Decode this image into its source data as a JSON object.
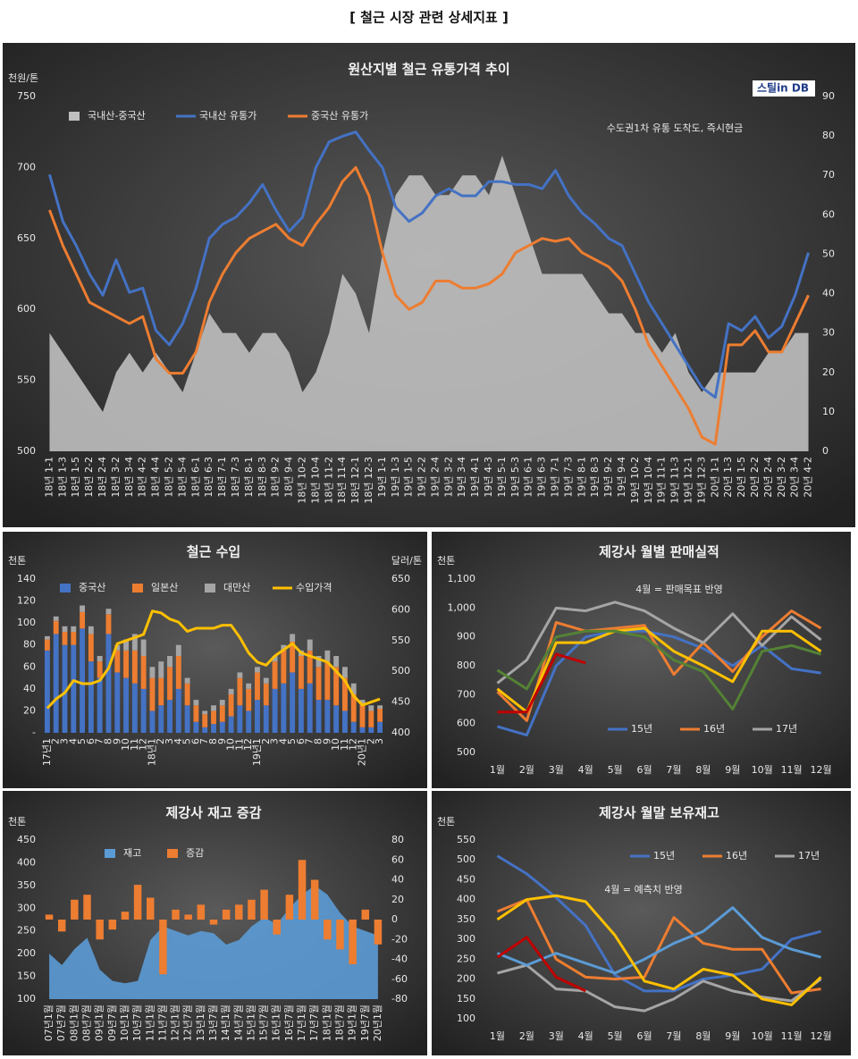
{
  "title": "[ 철근 시장 관련 상세지표 ]",
  "chart_data": [
    {
      "type": "combo",
      "title": "원산지별 철근 유통가격 추이",
      "ylabel": "천원/톤",
      "note": "수도권1차 유통 도착도, 즉시현금",
      "logo": "스틸in DB",
      "categories": [
        "18년 1-1",
        "18년 1-3",
        "18년 1-5",
        "18년 2-2",
        "18년 2-4",
        "18년 3-2",
        "18년 3-4",
        "18년 4-2",
        "18년 4-4",
        "18년 5-2",
        "18년 5-4",
        "18년 6-1",
        "18년 6-3",
        "18년 7-1",
        "18년 7-3",
        "18년 8-1",
        "18년 8-3",
        "18년 9-2",
        "18년 9-4",
        "18년 10-2",
        "18년 10-4",
        "18년 11-2",
        "18년 11-4",
        "18년 12-1",
        "18년 12-3",
        "19년 1-1",
        "19년 1-3",
        "19년 1-5",
        "19년 2-2",
        "19년 2-4",
        "19년 3-2",
        "19년 3-4",
        "19년 4-1",
        "19년 4-3",
        "19년 5-1",
        "19년 5-3",
        "19년 6-1",
        "19년 6-3",
        "19년 7-1",
        "19년 7-3",
        "19년 8-1",
        "19년 8-3",
        "19년 9-2",
        "19년 9-4",
        "19년 10-2",
        "19년 10-4",
        "19년 11-1",
        "19년 11-3",
        "19년 12-1",
        "19년 12-3",
        "20년 1-1",
        "20년 1-3",
        "20년 1-5",
        "20년 2-2",
        "20년 2-4",
        "20년 3-2",
        "20년 3-4",
        "20년 4-2"
      ],
      "ylim": [
        500,
        750
      ],
      "yticks": [
        500,
        550,
        600,
        650,
        700,
        750
      ],
      "y2lim": [
        0,
        90
      ],
      "y2ticks": [
        0,
        10,
        20,
        30,
        40,
        50,
        60,
        70,
        80,
        90
      ],
      "series": [
        {
          "name": "국내산-중국산",
          "kind": "area",
          "axis": "y2",
          "color": "#bfbfbf",
          "values": [
            30,
            25,
            20,
            15,
            10,
            20,
            25,
            20,
            25,
            20,
            15,
            25,
            35,
            30,
            30,
            25,
            30,
            30,
            25,
            15,
            20,
            30,
            45,
            40,
            30,
            50,
            65,
            70,
            70,
            65,
            65,
            70,
            70,
            65,
            75,
            65,
            55,
            45,
            45,
            45,
            45,
            40,
            35,
            35,
            30,
            30,
            25,
            30,
            20,
            15,
            20,
            20,
            20,
            20,
            25,
            25,
            30,
            30
          ]
        },
        {
          "name": "국내산 유통가",
          "kind": "line",
          "color": "#4472c4",
          "values": [
            695,
            662,
            645,
            625,
            610,
            635,
            612,
            615,
            585,
            575,
            590,
            615,
            650,
            660,
            665,
            675,
            688,
            670,
            655,
            665,
            700,
            718,
            722,
            725,
            712,
            700,
            672,
            662,
            668,
            680,
            685,
            680,
            680,
            690,
            690,
            688,
            688,
            685,
            698,
            680,
            668,
            660,
            650,
            645,
            625,
            605,
            590,
            575,
            560,
            545,
            538,
            590,
            585,
            595,
            580,
            588,
            610,
            640
          ]
        },
        {
          "name": "중국산 유통가",
          "kind": "line",
          "color": "#ed7d31",
          "values": [
            670,
            645,
            625,
            605,
            600,
            595,
            590,
            595,
            565,
            555,
            555,
            570,
            605,
            625,
            640,
            650,
            655,
            660,
            650,
            645,
            660,
            672,
            690,
            700,
            680,
            640,
            610,
            600,
            605,
            620,
            620,
            615,
            615,
            618,
            625,
            640,
            645,
            650,
            648,
            650,
            640,
            635,
            630,
            620,
            600,
            575,
            560,
            545,
            530,
            510,
            505,
            575,
            575,
            585,
            570,
            570,
            590,
            610
          ]
        }
      ]
    },
    {
      "type": "combo",
      "title": "철근 수입",
      "ylabel": "천톤",
      "y2label": "달러/톤",
      "stacked": true,
      "categories": [
        "17년1",
        "2",
        "3",
        "4",
        "5",
        "6",
        "7",
        "8",
        "9",
        "10",
        "11",
        "12",
        "18년1",
        "2",
        "3",
        "4",
        "5",
        "6",
        "7",
        "8",
        "9",
        "10",
        "11",
        "12",
        "19년1",
        "2",
        "3",
        "4",
        "5",
        "6",
        "7",
        "8",
        "9",
        "10",
        "11",
        "12",
        "20년1",
        "2",
        "3"
      ],
      "ylim": [
        0,
        140
      ],
      "yticks": [
        {
          "value": 0,
          "label": "-"
        },
        20,
        40,
        60,
        80,
        100,
        120,
        140
      ],
      "y2lim": [
        400,
        650
      ],
      "y2ticks": [
        400,
        450,
        500,
        550,
        600,
        650
      ],
      "series": [
        {
          "name": "중국산",
          "kind": "bar",
          "color": "#4472c4",
          "values": [
            75,
            90,
            80,
            80,
            95,
            65,
            50,
            90,
            55,
            50,
            45,
            40,
            20,
            25,
            30,
            40,
            25,
            10,
            5,
            8,
            10,
            15,
            25,
            20,
            30,
            25,
            40,
            45,
            55,
            40,
            45,
            30,
            30,
            25,
            20,
            10,
            5,
            5,
            10
          ]
        },
        {
          "name": "일본산",
          "kind": "bar",
          "color": "#ed7d31",
          "values": [
            10,
            12,
            12,
            12,
            15,
            25,
            15,
            18,
            20,
            25,
            30,
            30,
            30,
            25,
            30,
            30,
            20,
            15,
            12,
            12,
            15,
            20,
            25,
            20,
            25,
            20,
            25,
            30,
            28,
            30,
            30,
            30,
            35,
            35,
            30,
            25,
            20,
            15,
            12
          ]
        },
        {
          "name": "대만산",
          "kind": "bar",
          "color": "#a5a5a5",
          "values": [
            3,
            4,
            5,
            5,
            6,
            7,
            5,
            5,
            5,
            10,
            15,
            15,
            10,
            15,
            10,
            10,
            5,
            5,
            3,
            5,
            5,
            5,
            5,
            5,
            5,
            5,
            5,
            5,
            7,
            5,
            10,
            10,
            10,
            10,
            10,
            10,
            5,
            5,
            3
          ]
        },
        {
          "name": "수입가격",
          "kind": "line",
          "axis": "y2",
          "color": "#ffc000",
          "values": [
            440,
            455,
            465,
            485,
            480,
            480,
            485,
            505,
            545,
            550,
            555,
            560,
            598,
            595,
            585,
            580,
            565,
            570,
            570,
            570,
            575,
            575,
            555,
            530,
            515,
            510,
            525,
            535,
            545,
            530,
            525,
            520,
            515,
            500,
            485,
            460,
            445,
            450,
            455
          ]
        }
      ]
    },
    {
      "type": "line",
      "title": "제강사 월별 판매실적",
      "ylabel": "천톤",
      "note": "4월 = 판매목표 반영",
      "categories": [
        "1월",
        "2월",
        "3월",
        "4월",
        "5월",
        "6월",
        "7월",
        "8월",
        "9월",
        "10월",
        "11월",
        "12월"
      ],
      "ylim": [
        500,
        1100
      ],
      "yticks": [
        500,
        600,
        700,
        800,
        900,
        {
          "value": 1000,
          "label": "1,000"
        },
        {
          "value": 1100,
          "label": "1,100"
        }
      ],
      "series": [
        {
          "name": "15년",
          "kind": "line",
          "color": "#4472c4",
          "values": [
            590,
            560,
            800,
            900,
            920,
            920,
            900,
            860,
            800,
            870,
            790,
            775
          ]
        },
        {
          "name": "16년",
          "kind": "line",
          "color": "#ed7d31",
          "values": [
            710,
            610,
            950,
            920,
            930,
            940,
            770,
            880,
            780,
            900,
            990,
            930
          ]
        },
        {
          "name": "17년",
          "kind": "line",
          "color": "#a5a5a5",
          "values": [
            740,
            820,
            1000,
            990,
            1020,
            990,
            930,
            880,
            980,
            870,
            970,
            890
          ]
        },
        {
          "kind": "line",
          "color": "#ffc000",
          "values": [
            720,
            640,
            880,
            880,
            920,
            930,
            850,
            800,
            745,
            920,
            920,
            850
          ]
        },
        {
          "kind": "line",
          "color": "#548235",
          "values": [
            785,
            720,
            900,
            920,
            920,
            900,
            820,
            780,
            650,
            850,
            870,
            840
          ]
        },
        {
          "kind": "line",
          "color": "#c00000",
          "values": [
            640,
            640,
            840,
            810,
            null,
            null,
            null,
            null,
            null,
            null,
            null,
            null
          ]
        }
      ]
    },
    {
      "type": "combo",
      "title": "제강사 재고 증감",
      "ylabel": "천톤",
      "categories": [
        "07년1월",
        "07년7월",
        "08년1월",
        "08년7월",
        "09년1월",
        "09년7월",
        "10년1월",
        "10년7월",
        "11년1월",
        "11년7월",
        "12년1월",
        "12년7월",
        "13년1월",
        "13년7월",
        "14년1월",
        "14년7월",
        "15년1월",
        "15년7월",
        "16년1월",
        "16년7월",
        "17년1월",
        "17년7월",
        "18년1월",
        "18년7월",
        "19년1월",
        "19년7월",
        "20년1월"
      ],
      "ylim": [
        100,
        450
      ],
      "yticks": [
        100,
        150,
        200,
        250,
        300,
        350,
        400,
        450
      ],
      "y2lim": [
        -80,
        80
      ],
      "y2ticks": [
        -80,
        -60,
        -40,
        -20,
        0,
        20,
        40,
        60,
        80
      ],
      "series": [
        {
          "name": "재고",
          "kind": "area",
          "color": "#5b9bd5",
          "values": [
            200,
            175,
            210,
            235,
            165,
            140,
            135,
            140,
            230,
            260,
            250,
            240,
            250,
            245,
            220,
            230,
            260,
            280,
            265,
            300,
            330,
            350,
            330,
            290,
            260,
            250,
            240
          ]
        },
        {
          "name": "증감",
          "kind": "bar",
          "axis": "y2",
          "color": "#ed7d31",
          "values": [
            5,
            -12,
            20,
            25,
            -20,
            -10,
            8,
            35,
            22,
            -55,
            10,
            5,
            15,
            -5,
            10,
            15,
            20,
            30,
            -15,
            25,
            60,
            40,
            -20,
            -30,
            -45,
            10,
            -25
          ]
        }
      ]
    },
    {
      "type": "line",
      "title": "제강사 월말 보유재고",
      "ylabel": "천톤",
      "note": "4월 = 예측치 반영",
      "categories": [
        "1월",
        "2월",
        "3월",
        "4월",
        "5월",
        "6월",
        "7월",
        "8월",
        "9월",
        "10월",
        "11월",
        "12월"
      ],
      "ylim": [
        100,
        550
      ],
      "yticks": [
        100,
        150,
        200,
        250,
        300,
        350,
        400,
        450,
        500,
        550
      ],
      "series": [
        {
          "name": "15년",
          "kind": "line",
          "color": "#4472c4",
          "values": [
            510,
            465,
            405,
            335,
            210,
            170,
            170,
            200,
            210,
            225,
            300,
            320
          ]
        },
        {
          "name": "16년",
          "kind": "line",
          "color": "#ed7d31",
          "values": [
            370,
            400,
            250,
            205,
            200,
            205,
            355,
            290,
            275,
            275,
            165,
            175
          ]
        },
        {
          "name": "17년",
          "kind": "line",
          "color": "#a5a5a5",
          "values": [
            215,
            235,
            175,
            170,
            130,
            120,
            150,
            195,
            170,
            155,
            145,
            200
          ]
        },
        {
          "kind": "line",
          "color": "#5b9bd5",
          "values": [
            265,
            235,
            265,
            240,
            215,
            250,
            290,
            320,
            380,
            305,
            275,
            255
          ]
        },
        {
          "kind": "line",
          "color": "#ffc000",
          "values": [
            350,
            400,
            410,
            395,
            310,
            195,
            175,
            225,
            210,
            150,
            135,
            205
          ]
        },
        {
          "kind": "line",
          "color": "#c00000",
          "values": [
            255,
            305,
            205,
            170,
            null,
            null,
            null,
            null,
            null,
            null,
            null,
            null
          ]
        }
      ]
    }
  ]
}
